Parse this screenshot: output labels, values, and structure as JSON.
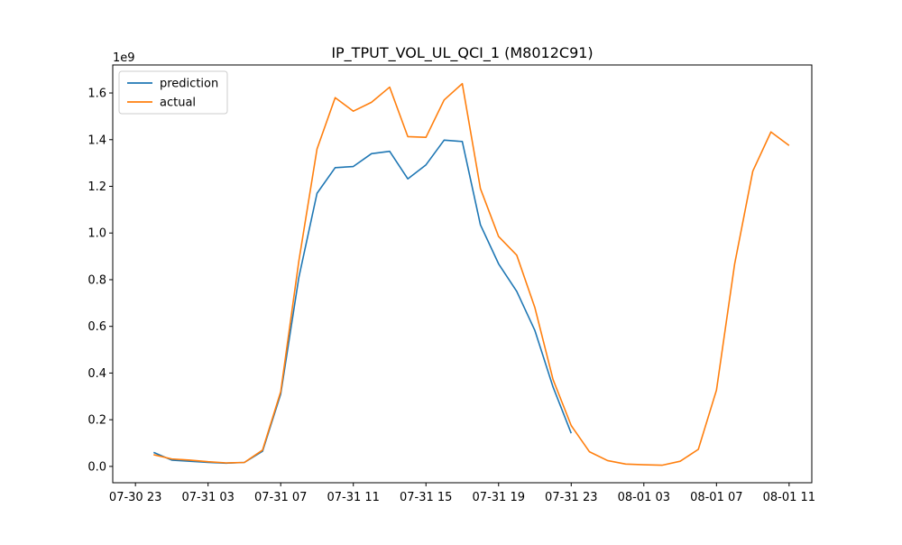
{
  "chart_data": {
    "type": "line",
    "title": "IP_TPUT_VOL_UL_QCI_1 (M8012C91)",
    "xlabel": "",
    "ylabel": "",
    "y_offset_label": "1e9",
    "y_scale": 1000000000,
    "ylim": [
      -0.07,
      1.72
    ],
    "xlim": [
      "2024-07-30 21:45",
      "2024-08-01 12:15"
    ],
    "x_ticks": [
      {
        "t": "2024-07-30 23:00",
        "label": "07-30 23"
      },
      {
        "t": "2024-07-31 03:00",
        "label": "07-31 03"
      },
      {
        "t": "2024-07-31 07:00",
        "label": "07-31 07"
      },
      {
        "t": "2024-07-31 11:00",
        "label": "07-31 11"
      },
      {
        "t": "2024-07-31 15:00",
        "label": "07-31 15"
      },
      {
        "t": "2024-07-31 19:00",
        "label": "07-31 19"
      },
      {
        "t": "2024-07-31 23:00",
        "label": "07-31 23"
      },
      {
        "t": "2024-08-01 03:00",
        "label": "08-01 03"
      },
      {
        "t": "2024-08-01 07:00",
        "label": "08-01 07"
      },
      {
        "t": "2024-08-01 11:00",
        "label": "08-01 11"
      }
    ],
    "y_ticks": [
      0.0,
      0.2,
      0.4,
      0.6,
      0.8,
      1.0,
      1.2,
      1.4,
      1.6
    ],
    "y_tick_labels": [
      "0.0",
      "0.2",
      "0.4",
      "0.6",
      "0.8",
      "1.0",
      "1.2",
      "1.4",
      "1.6"
    ],
    "grid": false,
    "legend_position": "upper-left",
    "series": [
      {
        "name": "prediction",
        "color": "#1f77b4",
        "x": [
          "2024-07-31 00:00",
          "2024-07-31 01:00",
          "2024-07-31 02:00",
          "2024-07-31 03:00",
          "2024-07-31 04:00",
          "2024-07-31 05:00",
          "2024-07-31 06:00",
          "2024-07-31 07:00",
          "2024-07-31 08:00",
          "2024-07-31 09:00",
          "2024-07-31 10:00",
          "2024-07-31 11:00",
          "2024-07-31 12:00",
          "2024-07-31 13:00",
          "2024-07-31 14:00",
          "2024-07-31 15:00",
          "2024-07-31 16:00",
          "2024-07-31 17:00",
          "2024-07-31 18:00",
          "2024-07-31 19:00",
          "2024-07-31 20:00",
          "2024-07-31 21:00",
          "2024-07-31 22:00",
          "2024-07-31 23:00"
        ],
        "values": [
          0.06,
          0.027,
          0.022,
          0.017,
          0.014,
          0.017,
          0.065,
          0.31,
          0.81,
          1.17,
          1.28,
          1.285,
          1.34,
          1.35,
          1.232,
          1.292,
          1.398,
          1.392,
          1.035,
          0.868,
          0.75,
          0.582,
          0.34,
          0.142
        ]
      },
      {
        "name": "actual",
        "color": "#ff7f0e",
        "x": [
          "2024-07-31 00:00",
          "2024-07-31 01:00",
          "2024-07-31 02:00",
          "2024-07-31 03:00",
          "2024-07-31 04:00",
          "2024-07-31 05:00",
          "2024-07-31 06:00",
          "2024-07-31 07:00",
          "2024-07-31 08:00",
          "2024-07-31 09:00",
          "2024-07-31 10:00",
          "2024-07-31 11:00",
          "2024-07-31 12:00",
          "2024-07-31 13:00",
          "2024-07-31 14:00",
          "2024-07-31 15:00",
          "2024-07-31 16:00",
          "2024-07-31 17:00",
          "2024-07-31 18:00",
          "2024-07-31 19:00",
          "2024-07-31 20:00",
          "2024-07-31 21:00",
          "2024-07-31 22:00",
          "2024-07-31 23:00",
          "2024-08-01 00:00",
          "2024-08-01 01:00",
          "2024-08-01 02:00",
          "2024-08-01 03:00",
          "2024-08-01 04:00",
          "2024-08-01 05:00",
          "2024-08-01 06:00",
          "2024-08-01 07:00",
          "2024-08-01 08:00",
          "2024-08-01 09:00",
          "2024-08-01 10:00",
          "2024-08-01 11:00"
        ],
        "values": [
          0.05,
          0.032,
          0.027,
          0.02,
          0.015,
          0.017,
          0.07,
          0.32,
          0.88,
          1.36,
          1.58,
          1.522,
          1.56,
          1.625,
          1.413,
          1.41,
          1.57,
          1.64,
          1.19,
          0.985,
          0.905,
          0.68,
          0.372,
          0.175,
          0.063,
          0.025,
          0.01,
          0.007,
          0.005,
          0.022,
          0.073,
          0.327,
          0.867,
          1.265,
          1.433,
          1.375
        ]
      }
    ]
  }
}
